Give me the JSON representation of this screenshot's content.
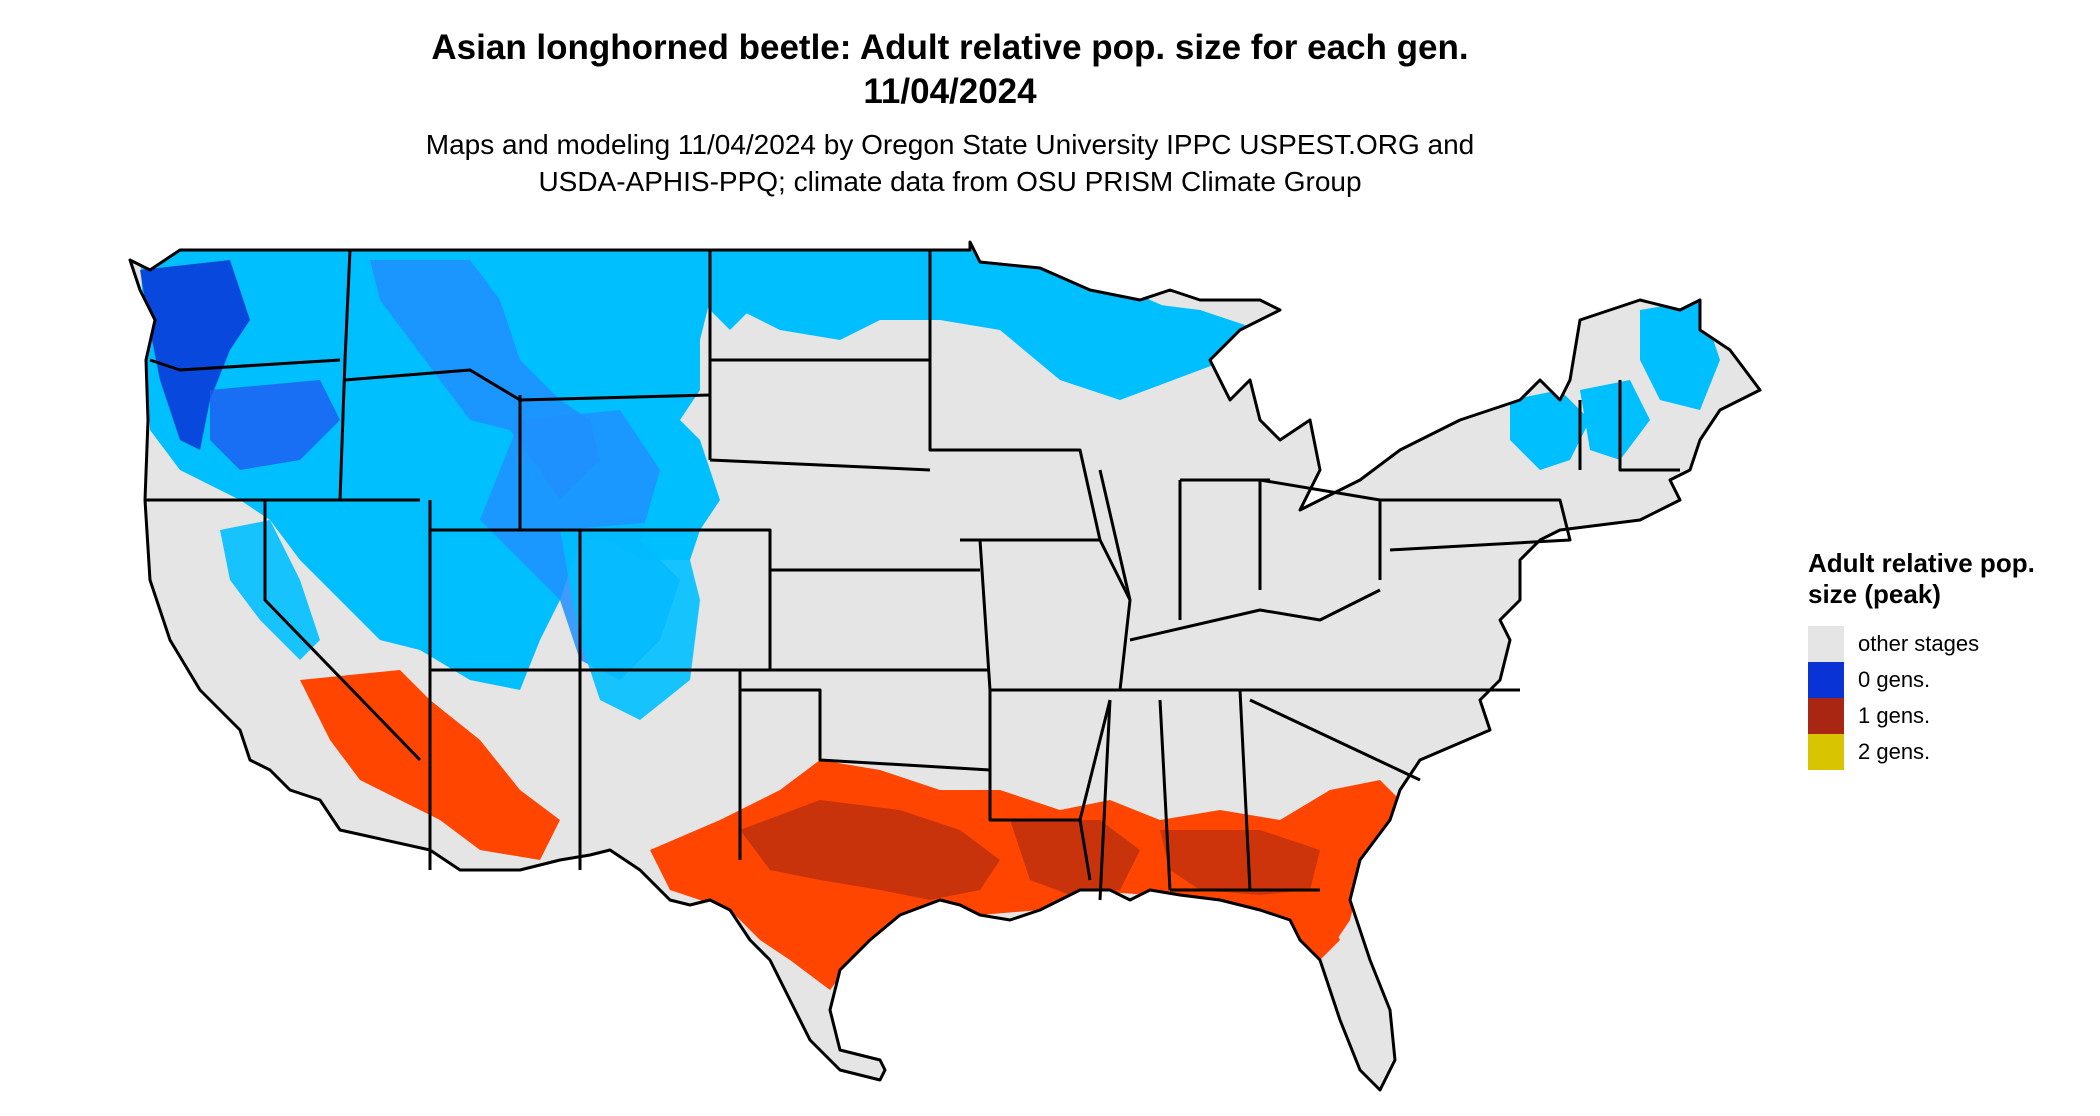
{
  "title_line1": "Asian longhorned beetle: Adult relative pop. size for each gen.",
  "title_line2": "11/04/2024",
  "subtitle_line1": "Maps and modeling 11/04/2024 by Oregon State University IPPC USPEST.ORG and",
  "subtitle_line2": "USDA-APHIS-PPQ; climate data from OSU PRISM Climate Group",
  "legend": {
    "title": "Adult relative pop. size (peak)",
    "items": [
      {
        "label": "other stages",
        "color": "#e5e5e5"
      },
      {
        "label": "0 gens.",
        "color": "#0a33d6"
      },
      {
        "label": "1 gens.",
        "color": "#a82612"
      },
      {
        "label": "2 gens.",
        "color": "#d8c400"
      }
    ]
  },
  "map_colors": {
    "land": "#e5e5e5",
    "light_blue": "#00bfff",
    "mid_blue": "#1e90ff",
    "dark_blue": "#0a33d6",
    "orange_red": "#ff4500",
    "dark_red": "#c0300e",
    "border": "#000000"
  }
}
